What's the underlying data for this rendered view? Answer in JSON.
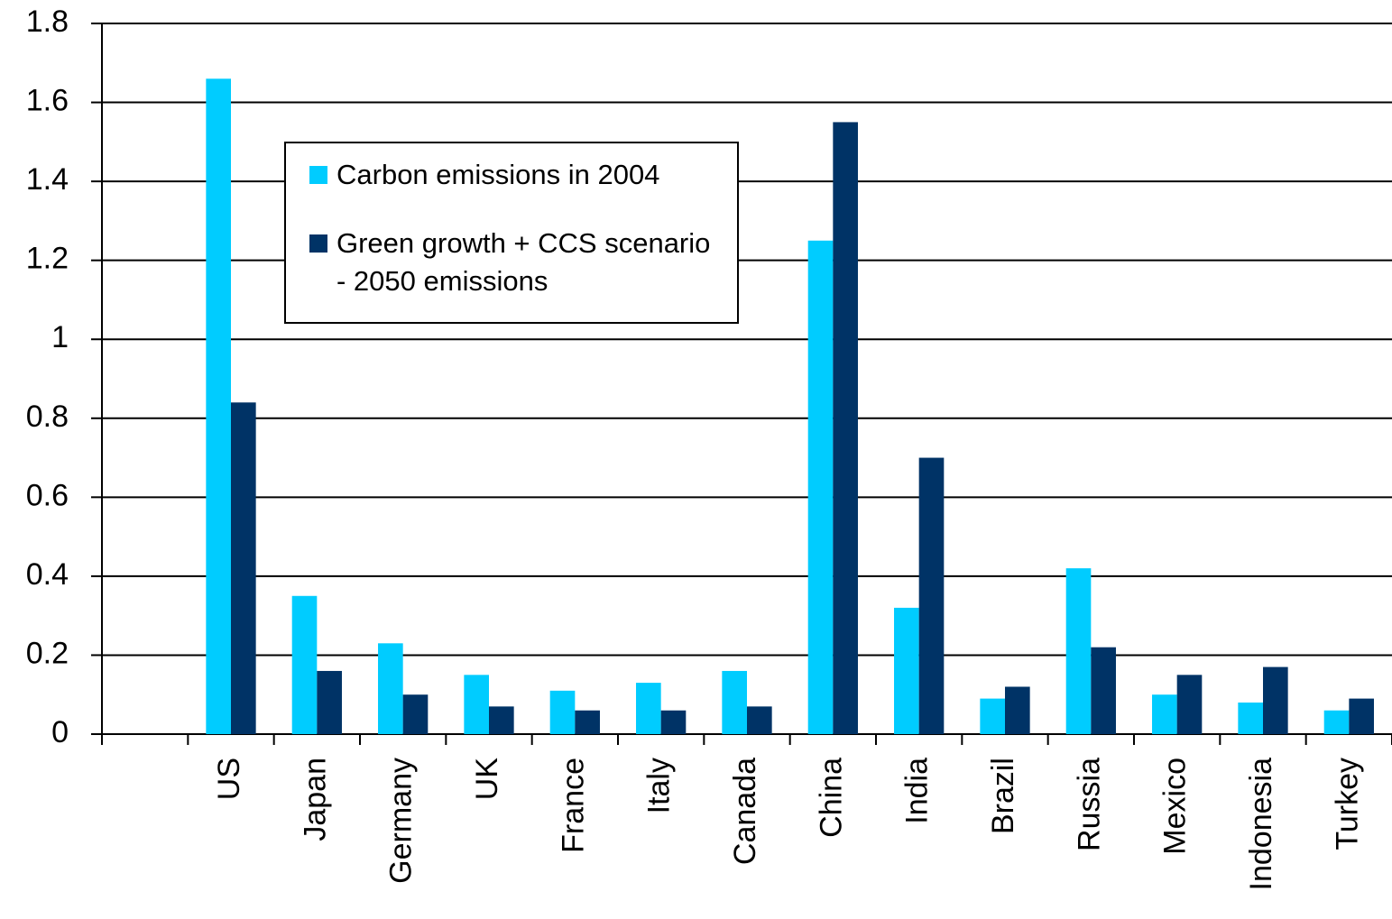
{
  "chart_data": {
    "type": "bar",
    "categories": [
      null,
      "US",
      "Japan",
      "Germany",
      "UK",
      "France",
      "Italy",
      "Canada",
      "China",
      "India",
      "Brazil",
      "Russia",
      "Mexico",
      "Indonesia",
      "Turkey"
    ],
    "series": [
      {
        "name": "Carbon emissions in 2004",
        "color": "#00ccff",
        "values": [
          null,
          1.66,
          0.35,
          0.23,
          0.15,
          0.11,
          0.13,
          0.16,
          1.25,
          0.32,
          0.09,
          0.42,
          0.1,
          0.08,
          0.06
        ]
      },
      {
        "name": "Green growth + CCS scenario - 2050 emissions",
        "color": "#003366",
        "values": [
          null,
          0.84,
          0.16,
          0.1,
          0.07,
          0.06,
          0.06,
          0.07,
          1.55,
          0.7,
          0.12,
          0.22,
          0.15,
          0.17,
          0.09
        ]
      }
    ],
    "ylim": [
      0,
      1.8
    ],
    "yticks": [
      0,
      0.2,
      0.4,
      0.6,
      0.8,
      1,
      1.2,
      1.4,
      1.6,
      1.8
    ],
    "grid": true,
    "legend": "upper left"
  }
}
